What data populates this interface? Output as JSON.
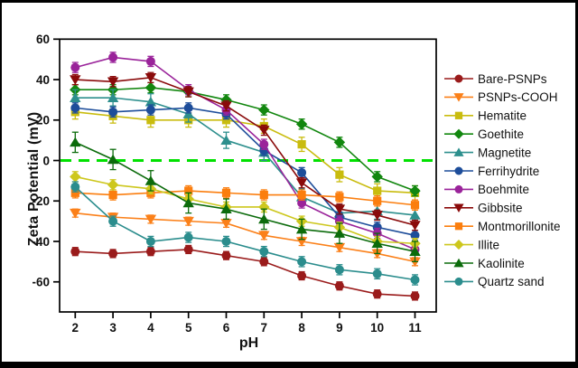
{
  "figure": {
    "title": "",
    "frame_color": "#000000",
    "background": "#ffffff"
  },
  "chart_data": {
    "type": "line",
    "title": "",
    "xlabel": "pH",
    "ylabel": "Zeta Potential (mV)",
    "x": [
      2,
      3,
      4,
      5,
      6,
      7,
      8,
      9,
      10,
      11
    ],
    "x_ticks": [
      2,
      3,
      4,
      5,
      6,
      7,
      8,
      9,
      10,
      11
    ],
    "y_ticks": [
      60,
      40,
      20,
      0,
      -20,
      -40,
      -60
    ],
    "xlim": [
      1.55,
      11.55
    ],
    "ylim": [
      -75,
      60
    ],
    "grid": false,
    "legend_position": "right-outside",
    "zero_line": {
      "value": 0,
      "color": "#00E100",
      "style": "dashed"
    },
    "series": [
      {
        "name": "Bare-PSNPs",
        "marker": "circle",
        "color": "#9A1B1B",
        "err": 2,
        "values": [
          -45,
          -46,
          -45,
          -44,
          -47,
          -50,
          -57,
          -62,
          -66,
          -67
        ]
      },
      {
        "name": "PSNPs-COOH",
        "marker": "triangle-down",
        "color": "#FB8019",
        "err": 2,
        "values": [
          -26,
          -28,
          -29,
          -30,
          -31,
          -37,
          -40,
          -43,
          -46,
          -50
        ]
      },
      {
        "name": "Hematite",
        "marker": "square",
        "color": "#C9BC0E",
        "err": 3.5,
        "values": [
          24,
          22,
          20,
          20,
          20,
          17,
          8,
          -7,
          -15,
          -16
        ]
      },
      {
        "name": "Goethite",
        "marker": "diamond",
        "color": "#12870F",
        "err": 2.5,
        "values": [
          35,
          35,
          36,
          34,
          30,
          25,
          18,
          9,
          -8,
          -15
        ]
      },
      {
        "name": "Magnetite",
        "marker": "triangle-up",
        "color": "#2D8F8D",
        "err": 4,
        "values": [
          31,
          31,
          29,
          23,
          10,
          4,
          -18,
          -26,
          -25,
          -27
        ]
      },
      {
        "name": "Ferrihydrite",
        "marker": "circle",
        "color": "#1D4D9A",
        "err": 2.5,
        "values": [
          26,
          24,
          25,
          26,
          23,
          5,
          -6,
          -28,
          -33,
          -37
        ]
      },
      {
        "name": "Boehmite",
        "marker": "circle",
        "color": "#9A239A",
        "err": 2.5,
        "values": [
          46,
          51,
          49,
          35,
          25,
          8,
          -21,
          -30,
          -36,
          -44
        ]
      },
      {
        "name": "Gibbsite",
        "marker": "triangle-down",
        "color": "#8A0A0A",
        "err": 2.5,
        "values": [
          40,
          39,
          41,
          34,
          27,
          15,
          -11,
          -24,
          -27,
          -32
        ]
      },
      {
        "name": "Montmorillonite",
        "marker": "square",
        "color": "#FB7E0E",
        "err": 2.5,
        "values": [
          -16,
          -17,
          -16,
          -15,
          -16,
          -17,
          -17,
          -18,
          -20,
          -22
        ]
      },
      {
        "name": "Illite",
        "marker": "diamond",
        "color": "#CDC71D",
        "err": 2.5,
        "values": [
          -8,
          -12,
          -14,
          -19,
          -23,
          -23,
          -30,
          -33,
          -40,
          -41
        ]
      },
      {
        "name": "Kaolinite",
        "marker": "triangle-up",
        "color": "#0B6B0B",
        "err": 5,
        "values": [
          9,
          0.5,
          -10,
          -21,
          -24,
          -29,
          -34,
          -36,
          -41,
          -45
        ]
      },
      {
        "name": "Quartz sand",
        "marker": "circle",
        "color": "#2B8D8D",
        "err": 2.5,
        "values": [
          -13,
          -30,
          -40,
          -38,
          -40,
          -45,
          -50,
          -54,
          -56,
          -59
        ]
      }
    ]
  }
}
